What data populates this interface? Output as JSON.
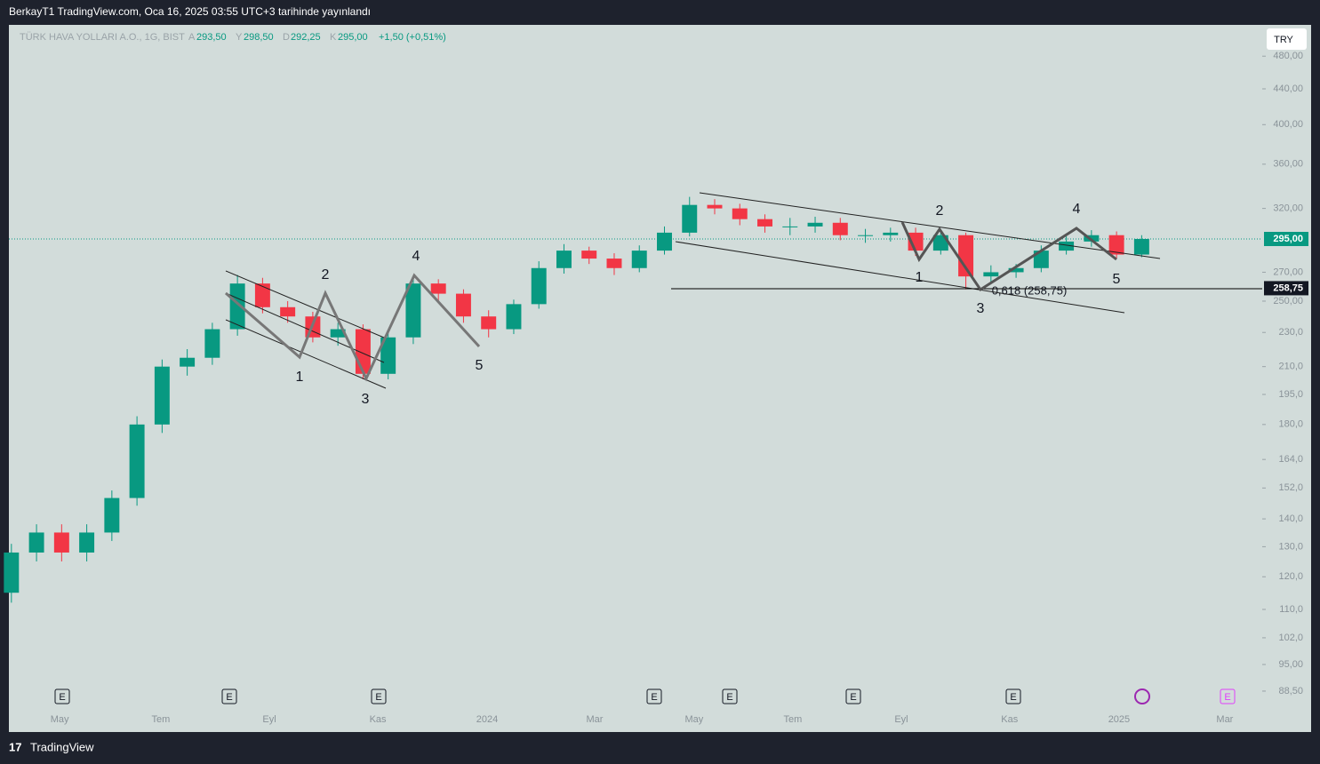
{
  "header": "BerkayT1 TradingView.com, Oca 16, 2025 03:55 UTC+3 tarihinde yayınlandı",
  "legend": {
    "symbol": "TÜRK HAVA YOLLARI A.O., 1G, BIST",
    "fields": [
      "A",
      "293,50",
      "Y",
      "298,50",
      "D",
      "292,25",
      "K",
      "295,00"
    ],
    "change": "+1,50 (+0,51%)"
  },
  "currency": "TRY",
  "footer": "TradingView",
  "chart_data": {
    "type": "candlestick",
    "log_scale": true,
    "up_color": "#089981",
    "down_color": "#f23645",
    "open": [
      115,
      128,
      135,
      128,
      135,
      148,
      180,
      210,
      215,
      232,
      262,
      246,
      240,
      227,
      232,
      206,
      227,
      262,
      255,
      240,
      232,
      248,
      273,
      286,
      280,
      273,
      286,
      300,
      323,
      320,
      311,
      305,
      305,
      308,
      298,
      298,
      300,
      286,
      298,
      267,
      270,
      273,
      286,
      293,
      298,
      283
    ],
    "high": [
      131,
      138,
      138,
      138,
      151,
      184,
      214,
      220,
      236,
      268,
      266,
      250,
      243,
      236,
      235,
      230,
      266,
      265,
      258,
      244,
      251,
      278,
      291,
      289,
      284,
      290,
      305,
      330,
      328,
      324,
      315,
      312,
      313,
      312,
      303,
      304,
      304,
      302,
      300,
      275,
      276,
      290,
      297,
      302,
      301,
      298
    ],
    "low": [
      112,
      125,
      125,
      125,
      132,
      145,
      176,
      205,
      211,
      228,
      242,
      236,
      224,
      222,
      203,
      203,
      223,
      250,
      236,
      227,
      229,
      245,
      269,
      276,
      268,
      270,
      283,
      297,
      315,
      306,
      300,
      298,
      300,
      294,
      292,
      293,
      282,
      283,
      258,
      262,
      266,
      270,
      283,
      289,
      280,
      281
    ],
    "close": [
      128,
      135,
      128,
      135,
      148,
      180,
      210,
      215,
      232,
      262,
      246,
      240,
      227,
      232,
      206,
      227,
      262,
      255,
      240,
      232,
      248,
      273,
      286,
      280,
      273,
      286,
      300,
      323,
      320,
      311,
      305,
      305,
      308,
      298,
      298,
      300,
      286,
      298,
      267,
      270,
      273,
      286,
      293,
      298,
      283,
      295
    ],
    "xlim": [
      -0.1,
      49.8
    ],
    "xticks": [
      {
        "value": 1.92,
        "label": "May"
      },
      {
        "value": 5.95,
        "label": "Tem"
      },
      {
        "value": 10.27,
        "label": "Eyl"
      },
      {
        "value": 14.59,
        "label": "Kas"
      },
      {
        "value": 18.94,
        "label": "2024"
      },
      {
        "value": 23.22,
        "label": "Mar"
      },
      {
        "value": 27.18,
        "label": "May"
      },
      {
        "value": 31.11,
        "label": "Tem"
      },
      {
        "value": 35.43,
        "label": "Eyl"
      },
      {
        "value": 39.74,
        "label": "Kas"
      },
      {
        "value": 44.1,
        "label": "2025"
      },
      {
        "value": 48.31,
        "label": "Mar"
      }
    ],
    "ylim": [
      84.4,
      521.7
    ],
    "yticks": [
      {
        "value": 480,
        "label": "480,00"
      },
      {
        "value": 440,
        "label": "440,00"
      },
      {
        "value": 400,
        "label": "400,00"
      },
      {
        "value": 360,
        "label": "360,00"
      },
      {
        "value": 320,
        "label": "320,00"
      },
      {
        "value": 270,
        "label": "270,00"
      },
      {
        "value": 250,
        "label": "250,00"
      },
      {
        "value": 230,
        "label": "230,0"
      },
      {
        "value": 210,
        "label": "210,0"
      },
      {
        "value": 195,
        "label": "195,0"
      },
      {
        "value": 180,
        "label": "180,0"
      },
      {
        "value": 164,
        "label": "164,0"
      },
      {
        "value": 152,
        "label": "152,0"
      },
      {
        "value": 140,
        "label": "140,0"
      },
      {
        "value": 130,
        "label": "130,0"
      },
      {
        "value": 120,
        "label": "120,0"
      },
      {
        "value": 110,
        "label": "110,0"
      },
      {
        "value": 102,
        "label": "102,0"
      },
      {
        "value": 95,
        "label": "95,00"
      },
      {
        "value": 88.5,
        "label": "88,50"
      }
    ],
    "last_price": {
      "value": 295,
      "label": "295,00"
    },
    "level": {
      "value": 258.75,
      "label": "258,75"
    },
    "annotations": [
      "1",
      "2",
      "3",
      "4",
      "5",
      "1",
      "2",
      "3",
      "4",
      "5",
      "0,618 (258,75)"
    ],
    "events": [
      "E",
      "E",
      "E",
      "E",
      "E",
      "E",
      "E",
      "E"
    ]
  }
}
